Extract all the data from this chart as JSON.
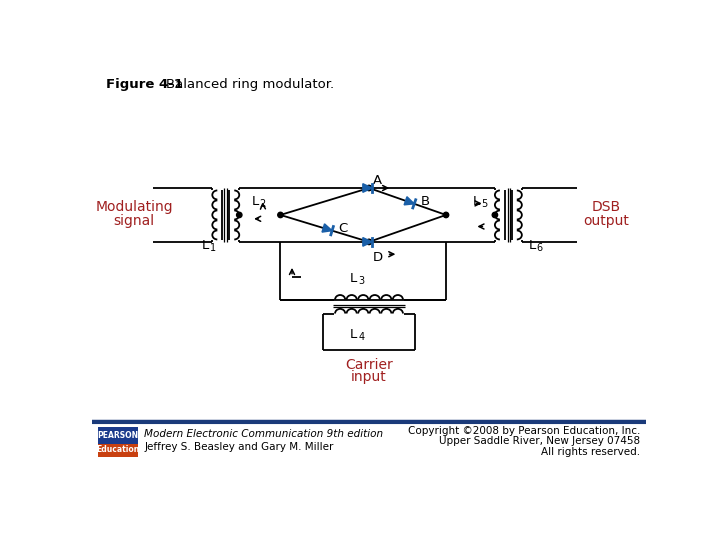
{
  "background_color": "#ffffff",
  "line_color": "#000000",
  "diode_color": "#1a5fa8",
  "text_color_red": "#a02020",
  "text_color_black": "#000000",
  "footer_line_color": "#1a3a7a",
  "pearson_blue": "#1a3a8c",
  "pearson_orange": "#c84010",
  "fig_label_bold": "Figure 4-1",
  "fig_label_normal": "   Balanced ring modulator.",
  "label_A": "A",
  "label_B": "B",
  "label_C": "C",
  "label_D": "D",
  "label_L1": "L",
  "label_L2": "L",
  "label_L3": "L",
  "label_L4": "L",
  "label_L5": "L",
  "label_L6": "L",
  "label_mod1": "Modulating",
  "label_mod2": "signal",
  "label_dsb1": "DSB",
  "label_dsb2": "output",
  "label_carrier1": "Carrier",
  "label_carrier2": "input",
  "footer_text1": "Modern Electronic Communication 9th edition",
  "footer_text2": "Jeffrey S. Beasley and Gary M. Miller",
  "copyright1": "Copyright ©2008 by Pearson Education, Inc.",
  "copyright2": "Upper Saddle River, New Jersey 07458",
  "copyright3": "All rights reserved.",
  "pearson_word": "PEARSON",
  "education_word": "Education"
}
